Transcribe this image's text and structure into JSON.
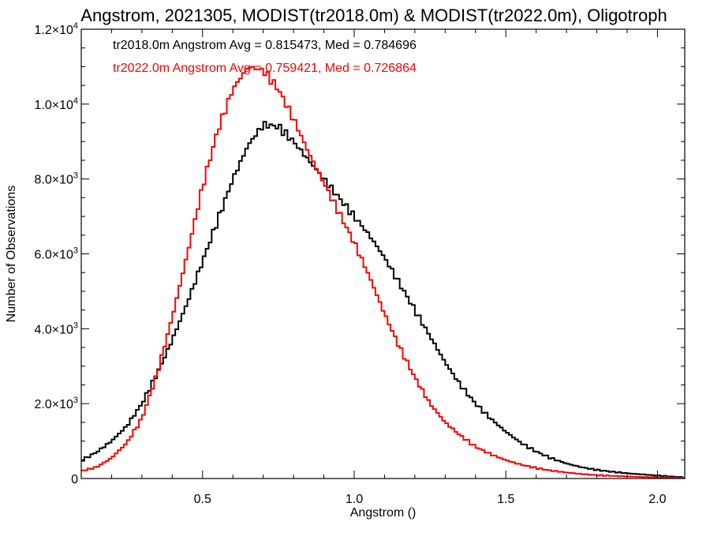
{
  "chart_data": {
    "type": "line",
    "title": "Angstrom, 2021305, MODIST(tr2018.0m) & MODIST(tr2022.0m), Oligotroph",
    "xlabel": "Angstrom ()",
    "ylabel": "Number of Observations",
    "xlim": [
      0.1,
      2.09
    ],
    "ylim": [
      0,
      12000
    ],
    "x_ticks": [
      0.5,
      1.0,
      1.5,
      2.0
    ],
    "x_tick_labels": [
      "0.5",
      "1.0",
      "1.5",
      "2.0"
    ],
    "y_ticks": [
      0,
      2000,
      4000,
      6000,
      8000,
      10000,
      12000
    ],
    "y_tick_labels": [
      {
        "mantissa": "0",
        "exp": ""
      },
      {
        "mantissa": "2.0×10",
        "exp": "3"
      },
      {
        "mantissa": "4.0×10",
        "exp": "3"
      },
      {
        "mantissa": "6.0×10",
        "exp": "3"
      },
      {
        "mantissa": "8.0×10",
        "exp": "3"
      },
      {
        "mantissa": "1.0×10",
        "exp": "4"
      },
      {
        "mantissa": "1.2×10",
        "exp": "4"
      }
    ],
    "legend": [
      {
        "text": "tr2018.0m Angstrom Avg = 0.815473, Med = 0.784696",
        "color": "#000000"
      },
      {
        "text": "tr2022.0m Angstrom Avg = 0.759421, Med = 0.726864",
        "color": "#ff0000"
      }
    ],
    "legend_position": "top-left",
    "grid": false,
    "step": true,
    "series": [
      {
        "color": "#000000",
        "points": [
          [
            0.1,
            480
          ],
          [
            0.15,
            700
          ],
          [
            0.2,
            1000
          ],
          [
            0.25,
            1400
          ],
          [
            0.3,
            2000
          ],
          [
            0.35,
            2800
          ],
          [
            0.4,
            3700
          ],
          [
            0.45,
            4700
          ],
          [
            0.5,
            5800
          ],
          [
            0.55,
            6900
          ],
          [
            0.6,
            8000
          ],
          [
            0.65,
            8900
          ],
          [
            0.7,
            9450
          ],
          [
            0.75,
            9400
          ],
          [
            0.8,
            9000
          ],
          [
            0.85,
            8500
          ],
          [
            0.9,
            8000
          ],
          [
            0.95,
            7500
          ],
          [
            1.0,
            7000
          ],
          [
            1.05,
            6500
          ],
          [
            1.1,
            5900
          ],
          [
            1.15,
            5200
          ],
          [
            1.2,
            4500
          ],
          [
            1.25,
            3800
          ],
          [
            1.3,
            3100
          ],
          [
            1.35,
            2500
          ],
          [
            1.4,
            2000
          ],
          [
            1.45,
            1600
          ],
          [
            1.5,
            1250
          ],
          [
            1.55,
            950
          ],
          [
            1.6,
            720
          ],
          [
            1.65,
            540
          ],
          [
            1.7,
            400
          ],
          [
            1.75,
            300
          ],
          [
            1.8,
            230
          ],
          [
            1.85,
            180
          ],
          [
            1.9,
            140
          ],
          [
            1.95,
            110
          ],
          [
            2.0,
            80
          ],
          [
            2.05,
            50
          ],
          [
            2.09,
            30
          ]
        ]
      },
      {
        "color": "#ff0000",
        "points": [
          [
            0.1,
            200
          ],
          [
            0.15,
            300
          ],
          [
            0.2,
            550
          ],
          [
            0.25,
            950
          ],
          [
            0.3,
            1600
          ],
          [
            0.35,
            2800
          ],
          [
            0.4,
            4300
          ],
          [
            0.45,
            6000
          ],
          [
            0.5,
            7800
          ],
          [
            0.55,
            9300
          ],
          [
            0.6,
            10400
          ],
          [
            0.65,
            11000
          ],
          [
            0.7,
            10900
          ],
          [
            0.75,
            10400
          ],
          [
            0.8,
            9600
          ],
          [
            0.85,
            8700
          ],
          [
            0.9,
            7900
          ],
          [
            0.95,
            7100
          ],
          [
            1.0,
            6300
          ],
          [
            1.05,
            5400
          ],
          [
            1.1,
            4400
          ],
          [
            1.15,
            3500
          ],
          [
            1.2,
            2700
          ],
          [
            1.25,
            2000
          ],
          [
            1.3,
            1500
          ],
          [
            1.35,
            1150
          ],
          [
            1.4,
            850
          ],
          [
            1.45,
            650
          ],
          [
            1.5,
            490
          ],
          [
            1.55,
            370
          ],
          [
            1.6,
            280
          ],
          [
            1.65,
            210
          ],
          [
            1.7,
            160
          ],
          [
            1.75,
            120
          ],
          [
            1.8,
            90
          ],
          [
            1.85,
            70
          ],
          [
            1.9,
            55
          ],
          [
            1.95,
            40
          ],
          [
            2.0,
            30
          ],
          [
            2.05,
            20
          ],
          [
            2.09,
            15
          ]
        ]
      }
    ]
  }
}
